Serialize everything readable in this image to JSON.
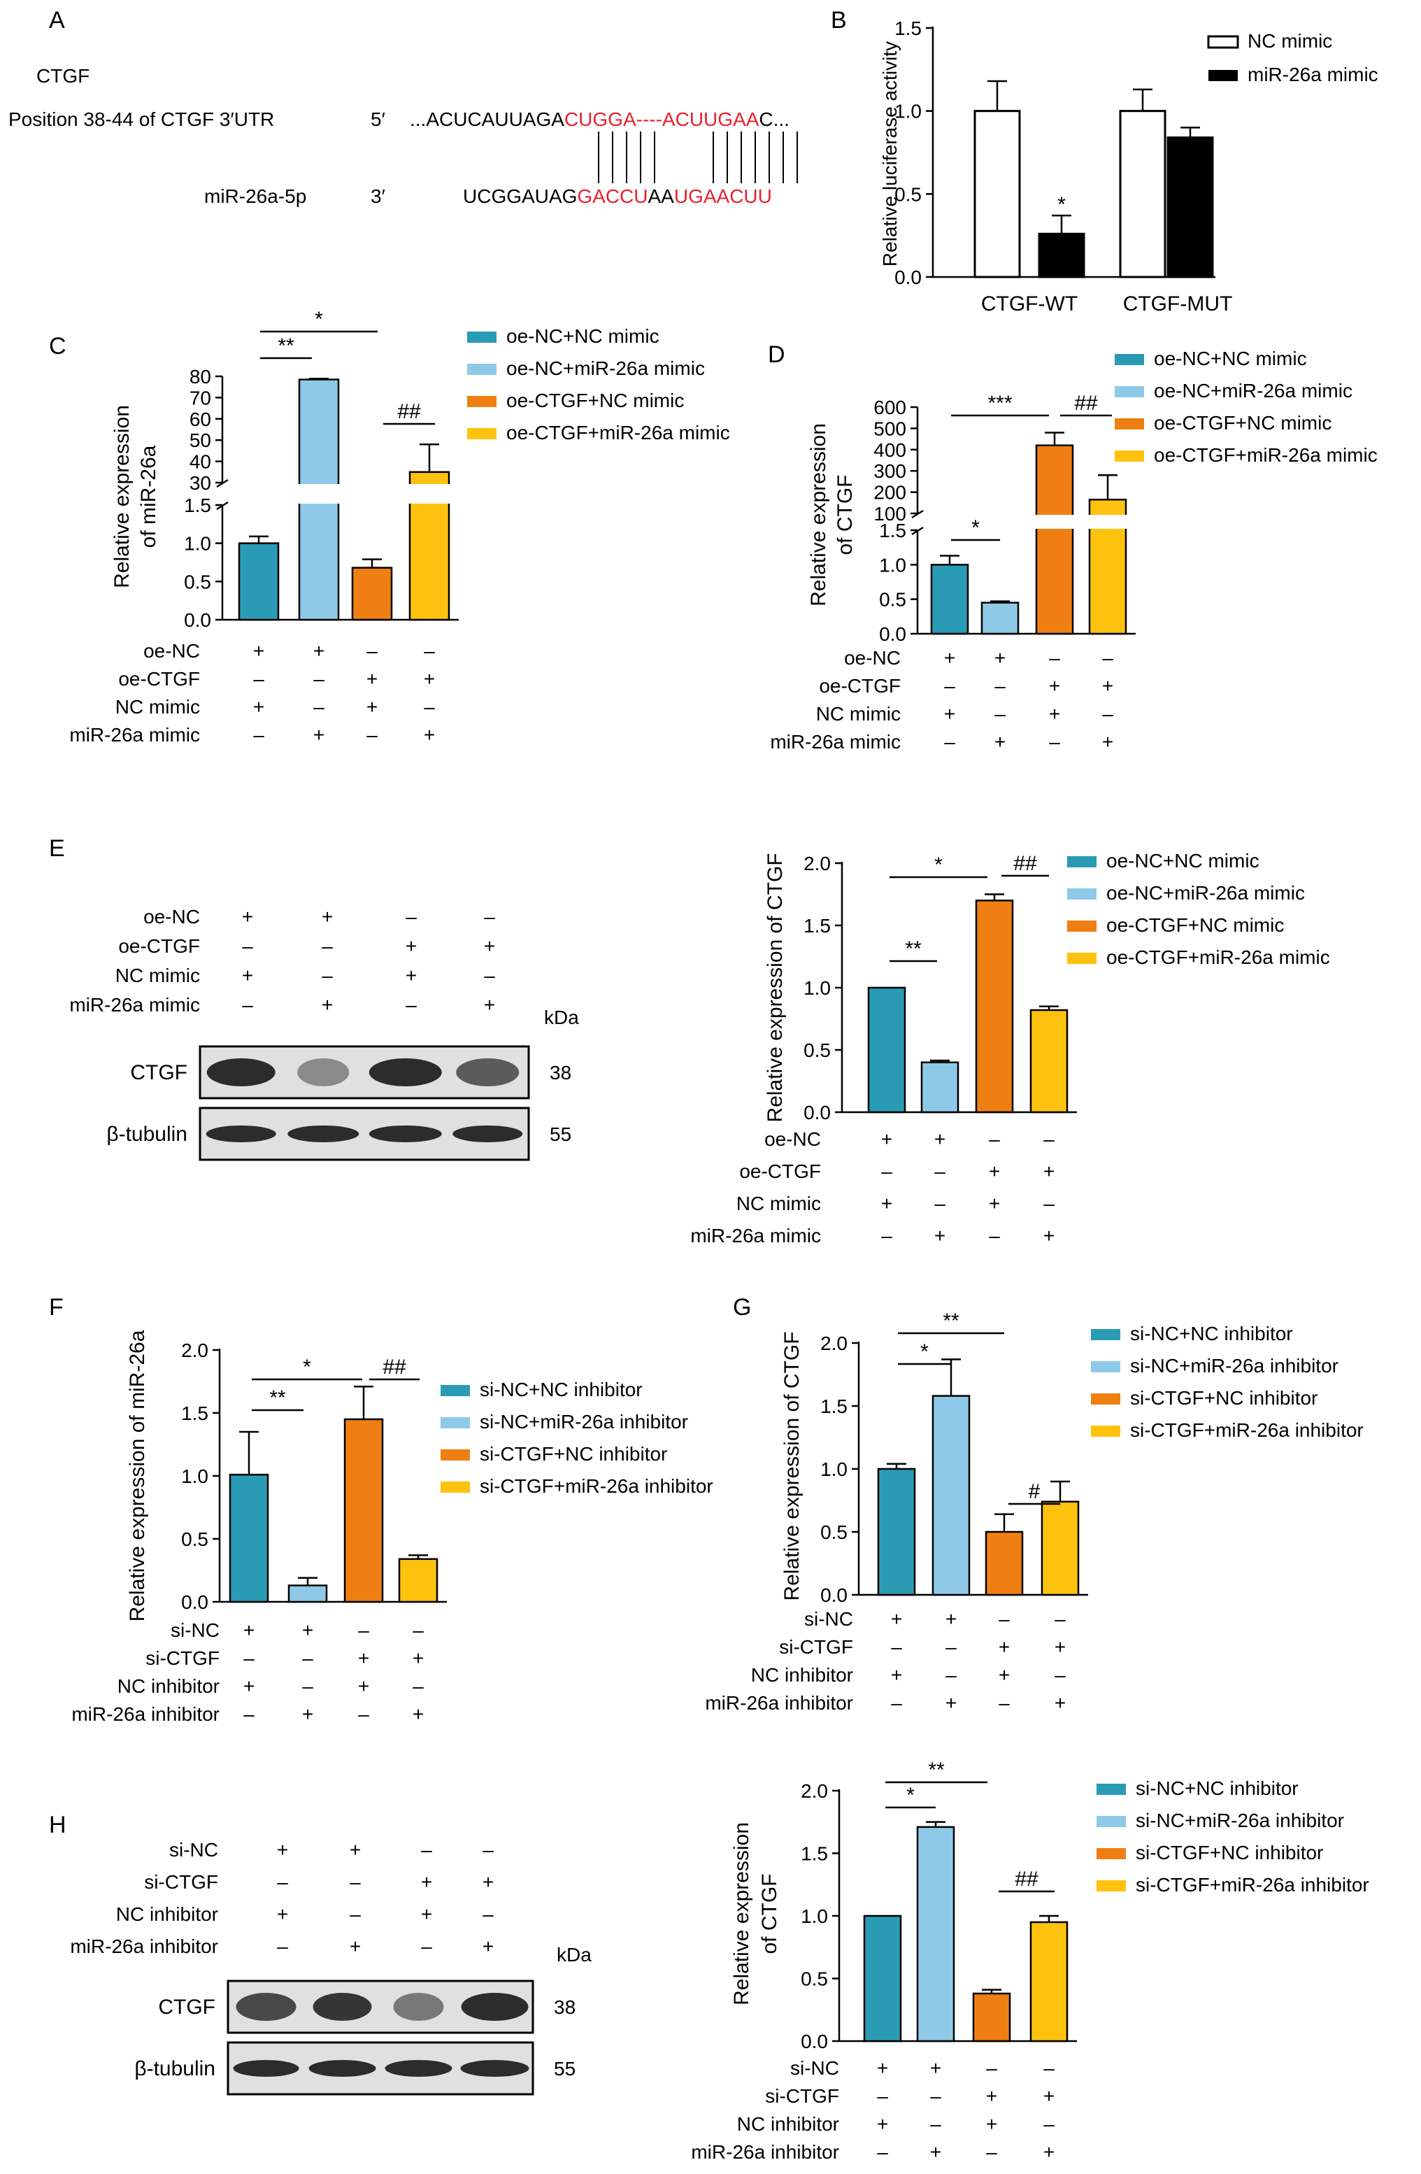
{
  "colors": {
    "teal": "#2a9bb5",
    "light_blue": "#8ecae8",
    "orange": "#f07f13",
    "yellow": "#ffc20e",
    "red_seq": "#e8212d",
    "black": "#000000",
    "white": "#ffffff",
    "blot_band": "#222222",
    "blot_bg": "#e0e0e0"
  },
  "panelA": {
    "letter": "A",
    "gene": "CTGF",
    "position_label": "Position 38-44 of CTGF 3′UTR",
    "mir_label": "miR-26a-5p",
    "prime5": "5′",
    "prime3": "3′",
    "top_seq": [
      {
        "text": "...ACUCAUUAGA",
        "color": "black"
      },
      {
        "text": "CUGGA",
        "color": "red"
      },
      {
        "text": "----",
        "color": "red"
      },
      {
        "text": "ACUUGAA",
        "color": "red"
      },
      {
        "text": "C...",
        "color": "black"
      }
    ],
    "bottom_seq": [
      {
        "text": "UCGGAUAG",
        "color": "black"
      },
      {
        "text": "GACCU",
        "color": "red"
      },
      {
        "text": "AA",
        "color": "black"
      },
      {
        "text": "UGAACUU",
        "color": "red"
      }
    ],
    "pair_lines": 12
  },
  "panel_letters": [
    "B",
    "C",
    "D",
    "E",
    "F",
    "G",
    "H"
  ],
  "kda": "kDa",
  "chart_data": [
    {
      "panel": "B",
      "type": "bar",
      "ylabel": "Relative luciferase activity",
      "categories": [
        "CTGF-WT",
        "CTGF-MUT"
      ],
      "series": [
        {
          "name": "NC mimic",
          "color": "white",
          "values": [
            1.0,
            1.0
          ],
          "errors": [
            0.18,
            0.13
          ]
        },
        {
          "name": "miR-26a mimic",
          "color": "black",
          "values": [
            0.26,
            0.84
          ],
          "errors": [
            0.11,
            0.06
          ]
        }
      ],
      "ylim": [
        0,
        1.5
      ],
      "yticks": [
        "0.0",
        "0.5",
        "1.0",
        "1.5"
      ],
      "annotations": [
        "*"
      ]
    },
    {
      "panel": "C",
      "type": "bar",
      "ylabel": [
        "Relative expression",
        "of miR-26a"
      ],
      "broken_axis": true,
      "lower_ylim": [
        0,
        1.5
      ],
      "upper_ylim": [
        30,
        80
      ],
      "yticks_lower": [
        "0.0",
        "0.5",
        "1.0",
        "1.5"
      ],
      "yticks_upper": [
        "30",
        "40",
        "50",
        "60",
        "70",
        "80"
      ],
      "values": [
        1.0,
        78.5,
        0.68,
        35.0
      ],
      "errors": [
        0.09,
        0.4,
        0.11,
        13.0
      ],
      "legend": [
        "oe-NC+NC mimic",
        "oe-NC+miR-26a mimic",
        "oe-CTGF+NC mimic",
        "oe-CTGF+miR-26a mimic"
      ],
      "conditions": [
        {
          "name": "oe-NC",
          "signs": [
            "+",
            "+",
            "–",
            "–"
          ]
        },
        {
          "name": "oe-CTGF",
          "signs": [
            "–",
            "–",
            "+",
            "+"
          ]
        },
        {
          "name": "NC mimic",
          "signs": [
            "+",
            "–",
            "+",
            "–"
          ]
        },
        {
          "name": "miR-26a mimic",
          "signs": [
            "–",
            "+",
            "–",
            "+"
          ]
        }
      ],
      "annotations": [
        "**",
        "*",
        "##"
      ]
    },
    {
      "panel": "D",
      "type": "bar",
      "ylabel": [
        "Relative expression",
        "of CTGF"
      ],
      "broken_axis": true,
      "lower_ylim": [
        0,
        1.5
      ],
      "upper_ylim": [
        100,
        600
      ],
      "yticks_lower": [
        "0.0",
        "0.5",
        "1.0",
        "1.5"
      ],
      "yticks_upper": [
        "100",
        "200",
        "300",
        "400",
        "500",
        "600"
      ],
      "values": [
        1.0,
        0.45,
        420,
        165
      ],
      "errors": [
        0.13,
        0.02,
        60,
        115
      ],
      "legend": [
        "oe-NC+NC mimic",
        "oe-NC+miR-26a mimic",
        "oe-CTGF+NC mimic",
        "oe-CTGF+miR-26a mimic"
      ],
      "conditions": [
        {
          "name": "oe-NC",
          "signs": [
            "+",
            "+",
            "–",
            "–"
          ]
        },
        {
          "name": "oe-CTGF",
          "signs": [
            "–",
            "–",
            "+",
            "+"
          ]
        },
        {
          "name": "NC mimic",
          "signs": [
            "+",
            "–",
            "+",
            "–"
          ]
        },
        {
          "name": "miR-26a mimic",
          "signs": [
            "–",
            "+",
            "–",
            "+"
          ]
        }
      ],
      "annotations": [
        "*",
        "***",
        "##"
      ]
    },
    {
      "panel": "E",
      "type": "bar",
      "ylabel": "Relative expression of CTGF",
      "ylim": [
        0,
        2.0
      ],
      "yticks": [
        "0.0",
        "0.5",
        "1.0",
        "1.5",
        "2.0"
      ],
      "values": [
        1.0,
        0.4,
        1.7,
        0.82
      ],
      "errors": [
        0.0,
        0.015,
        0.05,
        0.03
      ],
      "legend": [
        "oe-NC+NC mimic",
        "oe-NC+miR-26a mimic",
        "oe-CTGF+NC mimic",
        "oe-CTGF+miR-26a mimic"
      ],
      "conditions": [
        {
          "name": "oe-NC",
          "signs": [
            "+",
            "+",
            "–",
            "–"
          ]
        },
        {
          "name": "oe-CTGF",
          "signs": [
            "–",
            "–",
            "+",
            "+"
          ]
        },
        {
          "name": "NC mimic",
          "signs": [
            "+",
            "–",
            "+",
            "–"
          ]
        },
        {
          "name": "miR-26a mimic",
          "signs": [
            "–",
            "+",
            "–",
            "+"
          ]
        }
      ],
      "annotations": [
        "**",
        "*",
        "##"
      ],
      "blot": {
        "rows": [
          {
            "label": "CTGF",
            "kda": "38"
          },
          {
            "label": "β-tubulin",
            "kda": "55"
          }
        ]
      }
    },
    {
      "panel": "F",
      "type": "bar",
      "ylabel": "Relative expression of miR-26a",
      "ylim": [
        0,
        2.0
      ],
      "yticks": [
        "0.0",
        "0.5",
        "1.0",
        "1.5",
        "2.0"
      ],
      "values": [
        1.01,
        0.13,
        1.45,
        0.34
      ],
      "errors": [
        0.34,
        0.06,
        0.26,
        0.03
      ],
      "legend": [
        "si-NC+NC inhibitor",
        "si-NC+miR-26a inhibitor",
        "si-CTGF+NC inhibitor",
        "si-CTGF+miR-26a inhibitor"
      ],
      "conditions": [
        {
          "name": "si-NC",
          "signs": [
            "+",
            "+",
            "–",
            "–"
          ]
        },
        {
          "name": "si-CTGF",
          "signs": [
            "–",
            "–",
            "+",
            "+"
          ]
        },
        {
          "name": "NC inhibitor",
          "signs": [
            "+",
            "–",
            "+",
            "–"
          ]
        },
        {
          "name": "miR-26a inhibitor",
          "signs": [
            "–",
            "+",
            "–",
            "+"
          ]
        }
      ],
      "annotations": [
        "**",
        "*",
        "##"
      ]
    },
    {
      "panel": "G",
      "type": "bar",
      "ylabel": "Relative expression of CTGF",
      "ylim": [
        0,
        2.0
      ],
      "yticks": [
        "0.0",
        "0.5",
        "1.0",
        "1.5",
        "2.0"
      ],
      "values": [
        1.0,
        1.58,
        0.5,
        0.74
      ],
      "errors": [
        0.04,
        0.29,
        0.14,
        0.16
      ],
      "legend": [
        "si-NC+NC inhibitor",
        "si-NC+miR-26a inhibitor",
        "si-CTGF+NC inhibitor",
        "si-CTGF+miR-26a inhibitor"
      ],
      "conditions": [
        {
          "name": "si-NC",
          "signs": [
            "+",
            "+",
            "–",
            "–"
          ]
        },
        {
          "name": "si-CTGF",
          "signs": [
            "–",
            "–",
            "+",
            "+"
          ]
        },
        {
          "name": "NC inhibitor",
          "signs": [
            "+",
            "–",
            "+",
            "–"
          ]
        },
        {
          "name": "miR-26a inhibitor",
          "signs": [
            "–",
            "+",
            "–",
            "+"
          ]
        }
      ],
      "annotations": [
        "*",
        "**",
        "#"
      ]
    },
    {
      "panel": "H",
      "type": "bar",
      "ylabel": [
        "Relative expression",
        "of CTGF"
      ],
      "ylim": [
        0,
        2.0
      ],
      "yticks": [
        "0.0",
        "0.5",
        "1.0",
        "1.5",
        "2.0"
      ],
      "values": [
        1.0,
        1.71,
        0.38,
        0.95
      ],
      "errors": [
        0.0,
        0.04,
        0.03,
        0.05
      ],
      "legend": [
        "si-NC+NC inhibitor",
        "si-NC+miR-26a inhibitor",
        "si-CTGF+NC inhibitor",
        "si-CTGF+miR-26a inhibitor"
      ],
      "conditions": [
        {
          "name": "si-NC",
          "signs": [
            "+",
            "+",
            "–",
            "–"
          ]
        },
        {
          "name": "si-CTGF",
          "signs": [
            "–",
            "–",
            "+",
            "+"
          ]
        },
        {
          "name": "NC inhibitor",
          "signs": [
            "+",
            "–",
            "+",
            "–"
          ]
        },
        {
          "name": "miR-26a inhibitor",
          "signs": [
            "–",
            "+",
            "–",
            "+"
          ]
        }
      ],
      "annotations": [
        "*",
        "**",
        "##"
      ],
      "blot": {
        "rows": [
          {
            "label": "CTGF",
            "kda": "38"
          },
          {
            "label": "β-tubulin",
            "kda": "55"
          }
        ]
      }
    }
  ]
}
